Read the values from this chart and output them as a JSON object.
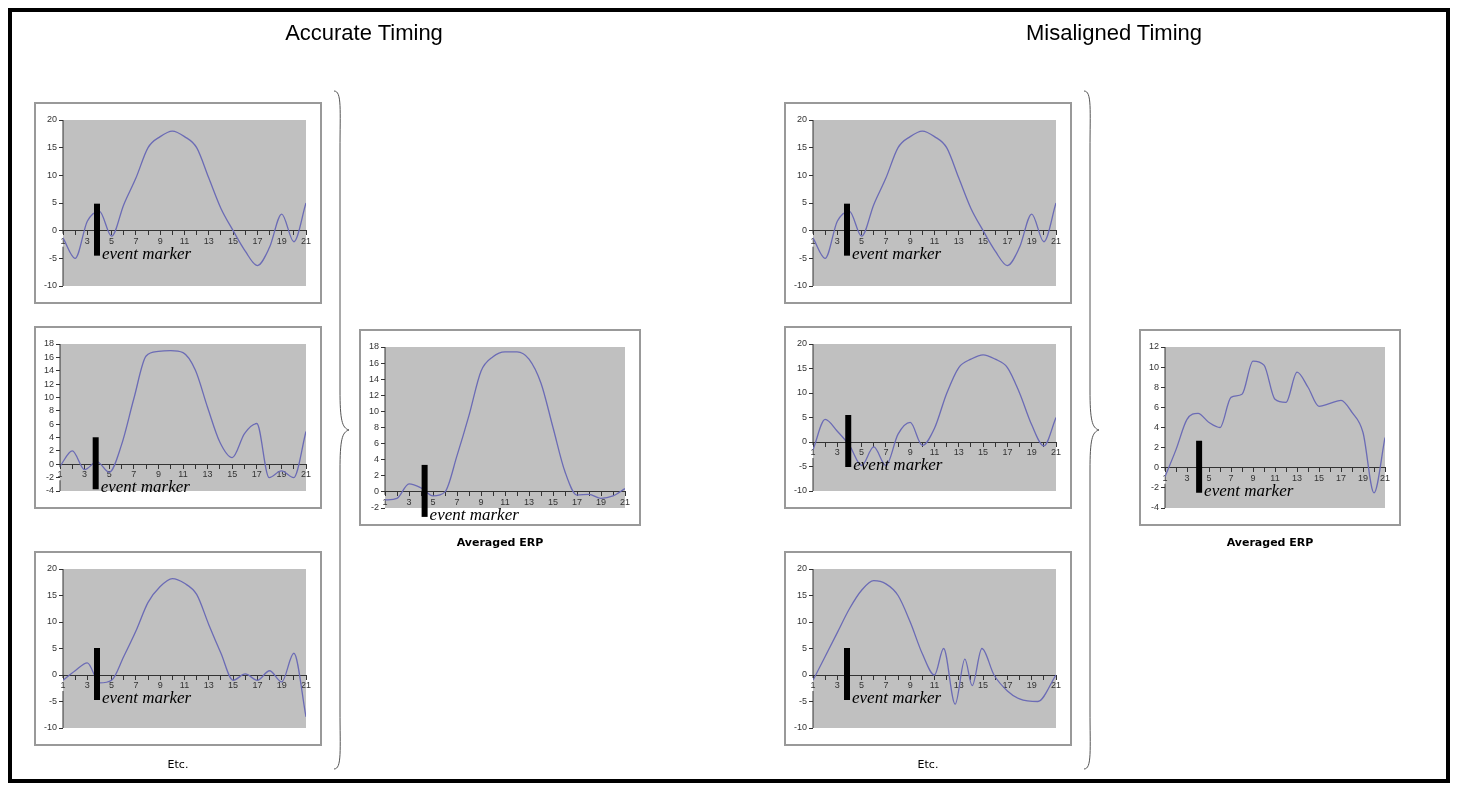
{
  "chart_data": [
    {
      "type": "line",
      "title": "Accurate Timing",
      "color": "#6b6bb5",
      "marker": "none",
      "x": [
        1,
        2,
        3,
        4,
        5,
        6,
        7,
        8,
        9,
        10,
        11,
        12,
        13,
        14,
        15,
        16,
        17,
        18,
        19,
        20,
        21
      ],
      "values": [
        -1.3,
        -5,
        1.7,
        3.5,
        -1,
        4.7,
        9.5,
        15,
        17,
        18,
        17,
        15,
        9.5,
        4,
        0,
        -3.7,
        -6.3,
        -3,
        3,
        -2,
        5
      ],
      "xlim": [
        1,
        21
      ],
      "xticks": [
        1,
        {
          "value": 2,
          "label": null
        },
        3,
        {
          "value": 4,
          "label": null
        },
        5,
        {
          "value": 6,
          "label": null
        },
        7,
        {
          "value": 8,
          "label": null
        },
        9,
        {
          "value": 10,
          "label": null
        },
        11,
        {
          "value": 12,
          "label": null
        },
        13,
        {
          "value": 14,
          "label": null
        },
        15,
        {
          "value": 16,
          "label": null
        },
        17,
        {
          "value": 18,
          "label": null
        },
        19,
        {
          "value": 20,
          "label": null
        },
        21
      ],
      "ylim": [
        -10,
        20
      ],
      "yticks": [
        -10,
        -5,
        0,
        5,
        10,
        15,
        20
      ],
      "ref_lines": [
        {
          "axis": "x",
          "value": 3.8,
          "label": "event marker",
          "color": "#000000"
        }
      ]
    },
    {
      "type": "line",
      "color": "#6b6bb5",
      "marker": "none",
      "x": [
        1,
        2,
        3,
        4,
        5,
        6,
        7,
        8,
        9,
        10,
        11,
        12,
        13,
        14,
        15,
        16,
        17,
        18,
        19,
        20,
        21
      ],
      "values": [
        -0.3,
        2,
        -0.8,
        0.4,
        -1.2,
        2.9,
        9.8,
        16.2,
        16.9,
        17,
        16.7,
        14.1,
        8.5,
        3.3,
        1,
        4.6,
        6.1,
        -2,
        -1,
        -2,
        4.9
      ],
      "xlim": [
        1,
        21
      ],
      "xticks": [
        1,
        {
          "value": 2,
          "label": null
        },
        3,
        {
          "value": 4,
          "label": null
        },
        5,
        {
          "value": 6,
          "label": null
        },
        7,
        {
          "value": 8,
          "label": null
        },
        9,
        {
          "value": 10,
          "label": null
        },
        11,
        {
          "value": 12,
          "label": null
        },
        13,
        {
          "value": 14,
          "label": null
        },
        15,
        {
          "value": 16,
          "label": null
        },
        17,
        {
          "value": 18,
          "label": null
        },
        19,
        {
          "value": 20,
          "label": null
        },
        21
      ],
      "ylim": [
        -4,
        18
      ],
      "yticks": [
        -4,
        -2,
        0,
        2,
        4,
        6,
        8,
        10,
        12,
        14,
        16,
        18
      ],
      "ref_lines": [
        {
          "axis": "x",
          "value": 3.9,
          "label": "event marker",
          "color": "#000000"
        }
      ]
    },
    {
      "type": "line",
      "color": "#6b6bb5",
      "marker": "none",
      "x": [
        1,
        2,
        3,
        4,
        5,
        6,
        7,
        8,
        9,
        10,
        11,
        12,
        13,
        14,
        15,
        16,
        17,
        18,
        19,
        20,
        21
      ],
      "values": [
        -1,
        0.8,
        2.3,
        -1.5,
        -1,
        3.5,
        8.3,
        13.7,
        16.7,
        18.2,
        17.3,
        15.2,
        9.5,
        4.1,
        -1,
        0.2,
        -1,
        0.8,
        -1.3,
        4.1,
        -7.9
      ],
      "xlim": [
        1,
        21
      ],
      "xticks": [
        1,
        {
          "value": 2,
          "label": null
        },
        3,
        {
          "value": 4,
          "label": null
        },
        5,
        {
          "value": 6,
          "label": null
        },
        7,
        {
          "value": 8,
          "label": null
        },
        9,
        {
          "value": 10,
          "label": null
        },
        11,
        {
          "value": 12,
          "label": null
        },
        13,
        {
          "value": 14,
          "label": null
        },
        15,
        {
          "value": 16,
          "label": null
        },
        17,
        {
          "value": 18,
          "label": null
        },
        19,
        {
          "value": 20,
          "label": null
        },
        21
      ],
      "ylim": [
        -10,
        20
      ],
      "yticks": [
        -10,
        -5,
        0,
        5,
        10,
        15,
        20
      ],
      "ref_lines": [
        {
          "axis": "x",
          "value": 3.8,
          "label": "event marker",
          "color": "#000000"
        }
      ],
      "annotations": [
        "Etc."
      ]
    },
    {
      "type": "line",
      "color": "#6b6bb5",
      "marker": "none",
      "x": [
        1,
        2,
        3,
        4,
        5,
        6,
        7,
        8,
        9,
        10,
        11,
        12,
        13,
        14,
        15,
        16,
        17,
        18,
        19,
        20,
        21
      ],
      "values": [
        -1,
        -0.8,
        1,
        0.5,
        -0.5,
        0,
        4.5,
        9.5,
        15,
        16.8,
        17.4,
        17.4,
        16.5,
        13.5,
        8,
        2.5,
        -0.4,
        -0.3,
        -0.8,
        -0.5,
        0.4
      ],
      "xlim": [
        1,
        21
      ],
      "xticks": [
        1,
        {
          "value": 2,
          "label": null
        },
        3,
        {
          "value": 4,
          "label": null
        },
        5,
        {
          "value": 6,
          "label": null
        },
        7,
        {
          "value": 8,
          "label": null
        },
        9,
        {
          "value": 10,
          "label": null
        },
        11,
        {
          "value": 12,
          "label": null
        },
        13,
        {
          "value": 14,
          "label": null
        },
        15,
        {
          "value": 16,
          "label": null
        },
        17,
        {
          "value": 18,
          "label": null
        },
        19,
        {
          "value": 20,
          "label": null
        },
        21
      ],
      "ylim": [
        -2,
        18
      ],
      "yticks": [
        -2,
        0,
        2,
        4,
        6,
        8,
        10,
        12,
        14,
        16,
        18
      ],
      "ref_lines": [
        {
          "axis": "x",
          "value": 4.3,
          "label": "event marker",
          "color": "#000000"
        }
      ],
      "annotations": [
        "Averaged ERP"
      ]
    },
    {
      "type": "line",
      "title": "Misaligned Timing",
      "color": "#6b6bb5",
      "marker": "none",
      "x": [
        1,
        2,
        3,
        4,
        5,
        6,
        7,
        8,
        9,
        10,
        11,
        12,
        13,
        14,
        15,
        16,
        17,
        18,
        19,
        20,
        21
      ],
      "values": [
        -1.3,
        -5,
        1.7,
        3.5,
        -1,
        4.7,
        9.5,
        15,
        17,
        18,
        17,
        15,
        9.5,
        4,
        0,
        -3.7,
        -6.3,
        -3,
        3,
        -2,
        5
      ],
      "xlim": [
        1,
        21
      ],
      "xticks": [
        1,
        {
          "value": 2,
          "label": null
        },
        3,
        {
          "value": 4,
          "label": null
        },
        5,
        {
          "value": 6,
          "label": null
        },
        7,
        {
          "value": 8,
          "label": null
        },
        9,
        {
          "value": 10,
          "label": null
        },
        11,
        {
          "value": 12,
          "label": null
        },
        13,
        {
          "value": 14,
          "label": null
        },
        15,
        {
          "value": 16,
          "label": null
        },
        17,
        {
          "value": 18,
          "label": null
        },
        19,
        {
          "value": 20,
          "label": null
        },
        21
      ],
      "ylim": [
        -10,
        20
      ],
      "yticks": [
        -10,
        -5,
        0,
        5,
        10,
        15,
        20
      ],
      "ref_lines": [
        {
          "axis": "x",
          "value": 3.8,
          "label": "event marker",
          "color": "#000000"
        }
      ]
    },
    {
      "type": "line",
      "color": "#6b6bb5",
      "marker": "none",
      "x": [
        1,
        2,
        3,
        4,
        5,
        6,
        7,
        8,
        9,
        10,
        11,
        12,
        13,
        14,
        15,
        16,
        17,
        18,
        19,
        20,
        21
      ],
      "values": [
        -1.6,
        4.6,
        2.2,
        -0.7,
        -4.8,
        -1,
        -4.8,
        1.6,
        4,
        -0.7,
        2.8,
        9.9,
        15.2,
        16.9,
        17.8,
        16.9,
        15.2,
        10,
        3.5,
        -0.8,
        5
      ],
      "xlim": [
        1,
        21
      ],
      "xticks": [
        1,
        {
          "value": 2,
          "label": null
        },
        3,
        {
          "value": 4,
          "label": null
        },
        5,
        {
          "value": 6,
          "label": null
        },
        7,
        {
          "value": 8,
          "label": null
        },
        9,
        {
          "value": 10,
          "label": null
        },
        11,
        {
          "value": 12,
          "label": null
        },
        13,
        {
          "value": 14,
          "label": null
        },
        15,
        {
          "value": 16,
          "label": null
        },
        17,
        {
          "value": 18,
          "label": null
        },
        19,
        {
          "value": 20,
          "label": null
        },
        21
      ],
      "ylim": [
        -10,
        20
      ],
      "yticks": [
        -10,
        -5,
        0,
        5,
        10,
        15,
        20
      ],
      "ref_lines": [
        {
          "axis": "x",
          "value": 3.9,
          "label": "event marker",
          "color": "#000000"
        }
      ]
    },
    {
      "type": "line",
      "color": "#6b6bb5",
      "marker": "none",
      "x": [
        1,
        2,
        3,
        4,
        5,
        6,
        7,
        8,
        9,
        10,
        11,
        11.75,
        12.7,
        13.5,
        14.1,
        14.9,
        15.9,
        17,
        18,
        19.5,
        21
      ],
      "values": [
        -1,
        3.5,
        8,
        12.5,
        16,
        17.8,
        17.2,
        15,
        10,
        4,
        0,
        5,
        -5.5,
        3,
        -2,
        5,
        0,
        -3,
        -4.5,
        -5,
        0
      ],
      "xlim": [
        1,
        21
      ],
      "xticks": [
        1,
        {
          "value": 2,
          "label": null
        },
        3,
        {
          "value": 4,
          "label": null
        },
        5,
        {
          "value": 6,
          "label": null
        },
        7,
        {
          "value": 8,
          "label": null
        },
        9,
        {
          "value": 10,
          "label": null
        },
        11,
        {
          "value": 12,
          "label": null
        },
        13,
        {
          "value": 14,
          "label": null
        },
        15,
        {
          "value": 16,
          "label": null
        },
        17,
        {
          "value": 18,
          "label": null
        },
        19,
        {
          "value": 20,
          "label": null
        },
        21
      ],
      "ylim": [
        -10,
        20
      ],
      "yticks": [
        -10,
        -5,
        0,
        5,
        10,
        15,
        20
      ],
      "ref_lines": [
        {
          "axis": "x",
          "value": 3.8,
          "label": "event marker",
          "color": "#000000"
        }
      ],
      "annotations": [
        "Etc."
      ]
    },
    {
      "type": "line",
      "color": "#6b6bb5",
      "marker": "none",
      "x": [
        1,
        2,
        3,
        4,
        5,
        6,
        7,
        8,
        9,
        10,
        11,
        12,
        13,
        14,
        15,
        16,
        17,
        18,
        19,
        20,
        21
      ],
      "values": [
        -0.9,
        1.8,
        4.8,
        5.4,
        4.5,
        4,
        7,
        7.3,
        10.6,
        10.2,
        6.8,
        6.5,
        9.5,
        8,
        6.1,
        6.4,
        6.7,
        5.5,
        3.5,
        -2.5,
        3
      ],
      "xlim": [
        1,
        21
      ],
      "xticks": [
        1,
        {
          "value": 2,
          "label": null
        },
        3,
        {
          "value": 4,
          "label": null
        },
        5,
        {
          "value": 6,
          "label": null
        },
        7,
        {
          "value": 8,
          "label": null
        },
        9,
        {
          "value": 10,
          "label": null
        },
        11,
        {
          "value": 12,
          "label": null
        },
        13,
        {
          "value": 14,
          "label": null
        },
        15,
        {
          "value": 16,
          "label": null
        },
        17,
        {
          "value": 18,
          "label": null
        },
        19,
        {
          "value": 20,
          "label": null
        },
        21
      ],
      "ylim": [
        -4,
        12
      ],
      "yticks": [
        -4,
        -2,
        0,
        2,
        4,
        6,
        8,
        10,
        12
      ],
      "ref_lines": [
        {
          "axis": "x",
          "value": 4.1,
          "label": "event marker",
          "color": "#000000"
        }
      ],
      "annotations": [
        "Averaged ERP"
      ]
    }
  ]
}
